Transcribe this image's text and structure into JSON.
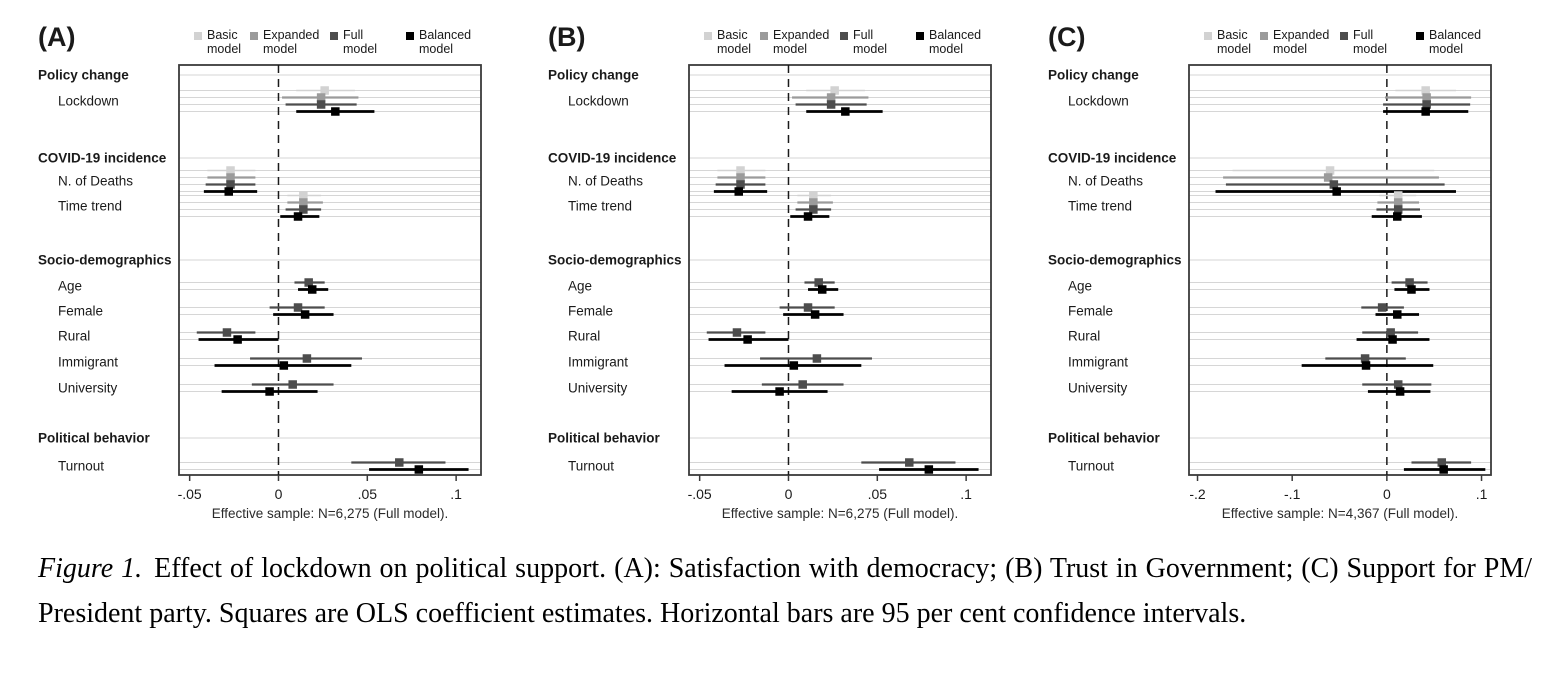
{
  "models": [
    {
      "label": "Basic model",
      "color": "#d2d2d2",
      "ci_width": 1.6
    },
    {
      "label": "Expanded model",
      "color": "#9b9b9b",
      "ci_width": 2.2
    },
    {
      "label": "Full model",
      "color": "#4d4d4d",
      "ci_width": 2.2
    },
    {
      "label": "Balanced model",
      "color": "#000000",
      "ci_width": 2.8
    }
  ],
  "chart_data": [
    {
      "type": "scatter",
      "title": "(A)",
      "outcome": "Satisfaction with democracy",
      "xlim": [
        -0.056,
        0.114
      ],
      "ticks": [
        {
          "value": -0.05,
          "label": "-.05"
        },
        {
          "value": 0,
          "label": "0"
        },
        {
          "value": 0.05,
          "label": ".05"
        },
        {
          "value": 0.1,
          "label": ".1"
        }
      ],
      "zero_line": 0,
      "note": "Effective sample: N=6,275 (Full model).",
      "rows": [
        {
          "kind": "header",
          "label": "Policy change"
        },
        {
          "kind": "coef",
          "label": "Lockdown",
          "estimates": [
            {
              "model": "Basic model",
              "b": 0.026,
              "lo": 0.01,
              "hi": 0.043
            },
            {
              "model": "Expanded model",
              "b": 0.024,
              "lo": 0.002,
              "hi": 0.045
            },
            {
              "model": "Full model",
              "b": 0.024,
              "lo": 0.004,
              "hi": 0.044
            },
            {
              "model": "Balanced model",
              "b": 0.032,
              "lo": 0.01,
              "hi": 0.054
            }
          ]
        },
        {
          "kind": "header",
          "label": "COVID-19 incidence"
        },
        {
          "kind": "coef",
          "label": "N. of Deaths",
          "estimates": [
            {
              "model": "Basic model",
              "b": -0.027,
              "lo": -0.04,
              "hi": -0.013
            },
            {
              "model": "Expanded model",
              "b": -0.027,
              "lo": -0.04,
              "hi": -0.013
            },
            {
              "model": "Full model",
              "b": -0.027,
              "lo": -0.041,
              "hi": -0.013
            },
            {
              "model": "Balanced model",
              "b": -0.028,
              "lo": -0.042,
              "hi": -0.012
            }
          ]
        },
        {
          "kind": "coef",
          "label": "Time trend",
          "estimates": [
            {
              "model": "Basic model",
              "b": 0.014,
              "lo": 0.005,
              "hi": 0.024
            },
            {
              "model": "Expanded model",
              "b": 0.014,
              "lo": 0.005,
              "hi": 0.025
            },
            {
              "model": "Full model",
              "b": 0.014,
              "lo": 0.004,
              "hi": 0.024
            },
            {
              "model": "Balanced model",
              "b": 0.011,
              "lo": 0.001,
              "hi": 0.023
            }
          ]
        },
        {
          "kind": "header",
          "label": "Socio-demographics"
        },
        {
          "kind": "coef",
          "label": "Age",
          "estimates": [
            {
              "model": "Full model",
              "b": 0.017,
              "lo": 0.009,
              "hi": 0.026
            },
            {
              "model": "Balanced model",
              "b": 0.019,
              "lo": 0.011,
              "hi": 0.028
            }
          ]
        },
        {
          "kind": "coef",
          "label": "Female",
          "estimates": [
            {
              "model": "Full model",
              "b": 0.011,
              "lo": -0.005,
              "hi": 0.026
            },
            {
              "model": "Balanced model",
              "b": 0.015,
              "lo": -0.003,
              "hi": 0.031
            }
          ]
        },
        {
          "kind": "coef",
          "label": "Rural",
          "estimates": [
            {
              "model": "Full model",
              "b": -0.029,
              "lo": -0.046,
              "hi": -0.013
            },
            {
              "model": "Balanced model",
              "b": -0.023,
              "lo": -0.045,
              "hi": 0.0
            }
          ]
        },
        {
          "kind": "coef",
          "label": "Immigrant",
          "estimates": [
            {
              "model": "Full model",
              "b": 0.016,
              "lo": -0.016,
              "hi": 0.047
            },
            {
              "model": "Balanced model",
              "b": 0.003,
              "lo": -0.036,
              "hi": 0.041
            }
          ]
        },
        {
          "kind": "coef",
          "label": "University",
          "estimates": [
            {
              "model": "Full model",
              "b": 0.008,
              "lo": -0.015,
              "hi": 0.031
            },
            {
              "model": "Balanced model",
              "b": -0.005,
              "lo": -0.032,
              "hi": 0.022
            }
          ]
        },
        {
          "kind": "header",
          "label": "Political behavior"
        },
        {
          "kind": "coef",
          "label": "Turnout",
          "estimates": [
            {
              "model": "Full model",
              "b": 0.068,
              "lo": 0.041,
              "hi": 0.094
            },
            {
              "model": "Balanced model",
              "b": 0.079,
              "lo": 0.051,
              "hi": 0.107
            }
          ]
        }
      ]
    },
    {
      "type": "scatter",
      "title": "(B)",
      "outcome": "Trust in Government",
      "xlim": [
        -0.056,
        0.114
      ],
      "ticks": [
        {
          "value": -0.05,
          "label": "-.05"
        },
        {
          "value": 0,
          "label": "0"
        },
        {
          "value": 0.05,
          "label": ".05"
        },
        {
          "value": 0.1,
          "label": ".1"
        }
      ],
      "zero_line": 0,
      "note": "Effective sample: N=6,275 (Full model).",
      "rows": [
        {
          "kind": "header",
          "label": "Policy change"
        },
        {
          "kind": "coef",
          "label": "Lockdown",
          "estimates": [
            {
              "model": "Basic model",
              "b": 0.026,
              "lo": 0.01,
              "hi": 0.043
            },
            {
              "model": "Expanded model",
              "b": 0.024,
              "lo": 0.002,
              "hi": 0.045
            },
            {
              "model": "Full model",
              "b": 0.024,
              "lo": 0.004,
              "hi": 0.044
            },
            {
              "model": "Balanced model",
              "b": 0.032,
              "lo": 0.01,
              "hi": 0.053
            }
          ]
        },
        {
          "kind": "header",
          "label": "COVID-19 incidence"
        },
        {
          "kind": "coef",
          "label": "N. of Deaths",
          "estimates": [
            {
              "model": "Basic model",
              "b": -0.027,
              "lo": -0.04,
              "hi": -0.013
            },
            {
              "model": "Expanded model",
              "b": -0.027,
              "lo": -0.04,
              "hi": -0.013
            },
            {
              "model": "Full model",
              "b": -0.027,
              "lo": -0.041,
              "hi": -0.013
            },
            {
              "model": "Balanced model",
              "b": -0.028,
              "lo": -0.042,
              "hi": -0.012
            }
          ]
        },
        {
          "kind": "coef",
          "label": "Time trend",
          "estimates": [
            {
              "model": "Basic model",
              "b": 0.014,
              "lo": 0.005,
              "hi": 0.024
            },
            {
              "model": "Expanded model",
              "b": 0.014,
              "lo": 0.005,
              "hi": 0.025
            },
            {
              "model": "Full model",
              "b": 0.014,
              "lo": 0.004,
              "hi": 0.024
            },
            {
              "model": "Balanced model",
              "b": 0.011,
              "lo": 0.001,
              "hi": 0.023
            }
          ]
        },
        {
          "kind": "header",
          "label": "Socio-demographics"
        },
        {
          "kind": "coef",
          "label": "Age",
          "estimates": [
            {
              "model": "Full model",
              "b": 0.017,
              "lo": 0.009,
              "hi": 0.026
            },
            {
              "model": "Balanced model",
              "b": 0.019,
              "lo": 0.011,
              "hi": 0.028
            }
          ]
        },
        {
          "kind": "coef",
          "label": "Female",
          "estimates": [
            {
              "model": "Full model",
              "b": 0.011,
              "lo": -0.005,
              "hi": 0.026
            },
            {
              "model": "Balanced model",
              "b": 0.015,
              "lo": -0.003,
              "hi": 0.031
            }
          ]
        },
        {
          "kind": "coef",
          "label": "Rural",
          "estimates": [
            {
              "model": "Full model",
              "b": -0.029,
              "lo": -0.046,
              "hi": -0.013
            },
            {
              "model": "Balanced model",
              "b": -0.023,
              "lo": -0.045,
              "hi": 0.0
            }
          ]
        },
        {
          "kind": "coef",
          "label": "Immigrant",
          "estimates": [
            {
              "model": "Full model",
              "b": 0.016,
              "lo": -0.016,
              "hi": 0.047
            },
            {
              "model": "Balanced model",
              "b": 0.003,
              "lo": -0.036,
              "hi": 0.041
            }
          ]
        },
        {
          "kind": "coef",
          "label": "University",
          "estimates": [
            {
              "model": "Full model",
              "b": 0.008,
              "lo": -0.015,
              "hi": 0.031
            },
            {
              "model": "Balanced model",
              "b": -0.005,
              "lo": -0.032,
              "hi": 0.022
            }
          ]
        },
        {
          "kind": "header",
          "label": "Political behavior"
        },
        {
          "kind": "coef",
          "label": "Turnout",
          "estimates": [
            {
              "model": "Full model",
              "b": 0.068,
              "lo": 0.041,
              "hi": 0.094
            },
            {
              "model": "Balanced model",
              "b": 0.079,
              "lo": 0.051,
              "hi": 0.107
            }
          ]
        }
      ]
    },
    {
      "type": "scatter",
      "title": "(C)",
      "outcome": "Support for PM/ President party",
      "xlim": [
        -0.209,
        0.11
      ],
      "ticks": [
        {
          "value": -0.2,
          "label": "-.2"
        },
        {
          "value": -0.1,
          "label": "-.1"
        },
        {
          "value": 0,
          "label": "0"
        },
        {
          "value": 0.1,
          "label": ".1"
        }
      ],
      "zero_line": 0,
      "note": "Effective sample: N=4,367 (Full model).",
      "rows": [
        {
          "kind": "header",
          "label": "Policy change"
        },
        {
          "kind": "coef",
          "label": "Lockdown",
          "estimates": [
            {
              "model": "Basic model",
              "b": 0.041,
              "lo": 0.009,
              "hi": 0.073
            },
            {
              "model": "Expanded model",
              "b": 0.042,
              "lo": -0.002,
              "hi": 0.089
            },
            {
              "model": "Full model",
              "b": 0.042,
              "lo": -0.004,
              "hi": 0.088
            },
            {
              "model": "Balanced model",
              "b": 0.041,
              "lo": -0.004,
              "hi": 0.086
            }
          ]
        },
        {
          "kind": "header",
          "label": "COVID-19 incidence"
        },
        {
          "kind": "coef",
          "label": "N. of Deaths",
          "estimates": [
            {
              "model": "Basic model",
              "b": -0.06,
              "lo": -0.163,
              "hi": 0.05
            },
            {
              "model": "Expanded model",
              "b": -0.062,
              "lo": -0.173,
              "hi": 0.055
            },
            {
              "model": "Full model",
              "b": -0.056,
              "lo": -0.17,
              "hi": 0.061
            },
            {
              "model": "Balanced model",
              "b": -0.053,
              "lo": -0.181,
              "hi": 0.073
            }
          ]
        },
        {
          "kind": "coef",
          "label": "Time trend",
          "estimates": [
            {
              "model": "Basic model",
              "b": 0.012,
              "lo": -0.008,
              "hi": 0.031
            },
            {
              "model": "Expanded model",
              "b": 0.012,
              "lo": -0.01,
              "hi": 0.034
            },
            {
              "model": "Full model",
              "b": 0.012,
              "lo": -0.011,
              "hi": 0.035
            },
            {
              "model": "Balanced model",
              "b": 0.011,
              "lo": -0.016,
              "hi": 0.037
            }
          ]
        },
        {
          "kind": "header",
          "label": "Socio-demographics"
        },
        {
          "kind": "coef",
          "label": "Age",
          "estimates": [
            {
              "model": "Full model",
              "b": 0.024,
              "lo": 0.005,
              "hi": 0.043
            },
            {
              "model": "Balanced model",
              "b": 0.026,
              "lo": 0.008,
              "hi": 0.045
            }
          ]
        },
        {
          "kind": "coef",
          "label": "Female",
          "estimates": [
            {
              "model": "Full model",
              "b": -0.005,
              "lo": -0.027,
              "hi": 0.018
            },
            {
              "model": "Balanced model",
              "b": 0.011,
              "lo": -0.012,
              "hi": 0.034
            }
          ]
        },
        {
          "kind": "coef",
          "label": "Rural",
          "estimates": [
            {
              "model": "Full model",
              "b": 0.004,
              "lo": -0.026,
              "hi": 0.033
            },
            {
              "model": "Balanced model",
              "b": 0.006,
              "lo": -0.032,
              "hi": 0.045
            }
          ]
        },
        {
          "kind": "coef",
          "label": "Immigrant",
          "estimates": [
            {
              "model": "Full model",
              "b": -0.023,
              "lo": -0.065,
              "hi": 0.02
            },
            {
              "model": "Balanced model",
              "b": -0.022,
              "lo": -0.09,
              "hi": 0.049
            }
          ]
        },
        {
          "kind": "coef",
          "label": "University",
          "estimates": [
            {
              "model": "Full model",
              "b": 0.012,
              "lo": -0.026,
              "hi": 0.047
            },
            {
              "model": "Balanced model",
              "b": 0.014,
              "lo": -0.02,
              "hi": 0.046
            }
          ]
        },
        {
          "kind": "header",
          "label": "Political behavior"
        },
        {
          "kind": "coef",
          "label": "Turnout",
          "estimates": [
            {
              "model": "Full model",
              "b": 0.058,
              "lo": 0.026,
              "hi": 0.089
            },
            {
              "model": "Balanced model",
              "b": 0.06,
              "lo": 0.018,
              "hi": 0.104
            }
          ]
        }
      ]
    }
  ],
  "caption": {
    "label": "Figure 1.",
    "text": "Effect of lockdown on political support. (A): Satisfaction with democracy; (B) Trust in Government; (C) Support for PM/ President party. Squares are OLS coefficient estimates. Horizontal bars are 95 per cent confidence intervals."
  },
  "style_colors": {
    "gridline": "#d6d6d6",
    "plot_border": "#3a3a3a",
    "zero_line": "#1a1a1a",
    "text": "#1a1a1a"
  }
}
